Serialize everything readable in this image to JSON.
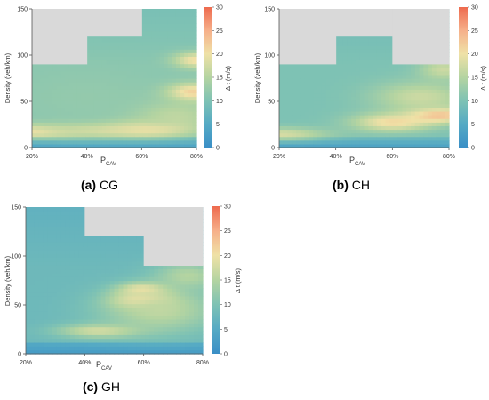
{
  "chart_data": [
    {
      "id": "CG",
      "type": "heatmap",
      "caption_letter": "(a)",
      "caption_text": "CG",
      "xlabel_main": "P",
      "xlabel_sub": "CAV",
      "ylabel": "Density (veh/km)",
      "colorbar_label": "Δ t (m/s)",
      "x_ticks": [
        "20%",
        "40%",
        "60%",
        "80%"
      ],
      "y_ticks": [
        "0",
        "50",
        "100",
        "150"
      ],
      "colorbar_ticks": [
        "0",
        "5",
        "10",
        "15",
        "20",
        "25",
        "30"
      ],
      "x_range": [
        20,
        80
      ],
      "y_range": [
        0,
        150
      ],
      "z_range": [
        0,
        30
      ],
      "no_data_regions": [
        {
          "x": [
            20,
            40
          ],
          "y": [
            90,
            150
          ]
        },
        {
          "x": [
            40,
            60
          ],
          "y": [
            120,
            150
          ]
        }
      ],
      "field": [
        {
          "x": 20,
          "y": 18,
          "v": 22,
          "sx": 12,
          "sy": 5
        },
        {
          "x": 45,
          "y": 20,
          "v": 20,
          "sx": 18,
          "sy": 6
        },
        {
          "x": 62,
          "y": 22,
          "v": 24,
          "sx": 10,
          "sy": 6
        },
        {
          "x": 78,
          "y": 60,
          "v": 24,
          "sx": 7,
          "sy": 7
        },
        {
          "x": 80,
          "y": 95,
          "v": 21,
          "sx": 6,
          "sy": 6
        },
        {
          "x": 70,
          "y": 35,
          "v": 17,
          "sx": 12,
          "sy": 12
        },
        {
          "x": 40,
          "y": 55,
          "v": 12,
          "sx": 20,
          "sy": 25
        }
      ],
      "base": {
        "mid": 11,
        "low": 3,
        "low_edge": 8
      }
    },
    {
      "id": "CH",
      "type": "heatmap",
      "caption_letter": "(b)",
      "caption_text": "CH",
      "xlabel_main": "P",
      "xlabel_sub": "CAV",
      "ylabel": "Density (veh/km)",
      "colorbar_label": "Δ t (m/s)",
      "x_ticks": [
        "20%",
        "40%",
        "60%",
        "80%"
      ],
      "y_ticks": [
        "0",
        "50",
        "100",
        "150"
      ],
      "colorbar_ticks": [
        "0",
        "5",
        "10",
        "15",
        "20",
        "25",
        "30"
      ],
      "x_range": [
        20,
        80
      ],
      "y_range": [
        0,
        150
      ],
      "z_range": [
        0,
        30
      ],
      "no_data_regions": [
        {
          "x": [
            20,
            40
          ],
          "y": [
            90,
            150
          ]
        },
        {
          "x": [
            40,
            60
          ],
          "y": [
            120,
            150
          ]
        },
        {
          "x": [
            60,
            80
          ],
          "y": [
            90,
            150
          ]
        }
      ],
      "field": [
        {
          "x": 20,
          "y": 15,
          "v": 18,
          "sx": 12,
          "sy": 5
        },
        {
          "x": 60,
          "y": 28,
          "v": 21,
          "sx": 10,
          "sy": 7
        },
        {
          "x": 76,
          "y": 36,
          "v": 25,
          "sx": 8,
          "sy": 6
        },
        {
          "x": 70,
          "y": 55,
          "v": 17,
          "sx": 12,
          "sy": 12
        },
        {
          "x": 78,
          "y": 85,
          "v": 17,
          "sx": 6,
          "sy": 8
        }
      ],
      "base": {
        "mid": 10,
        "low": 3,
        "low_edge": 8
      }
    },
    {
      "id": "GH",
      "type": "heatmap",
      "caption_letter": "(c)",
      "caption_text": "GH",
      "xlabel_main": "P",
      "xlabel_sub": "CAV",
      "ylabel": "Density (veh/km)",
      "colorbar_label": "Δ t (m/s)",
      "x_ticks": [
        "20%",
        "40%",
        "60%",
        "80%"
      ],
      "y_ticks": [
        "0",
        "50",
        "100",
        "150"
      ],
      "colorbar_ticks": [
        "0",
        "5",
        "10",
        "15",
        "20",
        "25",
        "30"
      ],
      "x_range": [
        20,
        80
      ],
      "y_range": [
        0,
        150
      ],
      "z_range": [
        0,
        30
      ],
      "no_data_regions": [
        {
          "x": [
            40,
            60
          ],
          "y": [
            120,
            150
          ]
        },
        {
          "x": [
            60,
            80
          ],
          "y": [
            90,
            150
          ]
        }
      ],
      "field": [
        {
          "x": 60,
          "y": 55,
          "v": 26,
          "sx": 7,
          "sy": 6
        },
        {
          "x": 60,
          "y": 66,
          "v": 22,
          "sx": 6,
          "sy": 5
        },
        {
          "x": 45,
          "y": 24,
          "v": 18,
          "sx": 10,
          "sy": 5
        },
        {
          "x": 65,
          "y": 45,
          "v": 16,
          "sx": 14,
          "sy": 16
        },
        {
          "x": 75,
          "y": 80,
          "v": 15,
          "sx": 8,
          "sy": 10
        }
      ],
      "base": {
        "mid": 8,
        "low": 2,
        "low_edge": 5
      }
    }
  ],
  "colors": {
    "colormap": [
      "#3a8fc6",
      "#55aac4",
      "#7ec2b4",
      "#b4d4a1",
      "#efe1a6",
      "#f6b08a",
      "#ee6a4e"
    ],
    "no_data": "#d9d9d9",
    "axis": "#555555"
  }
}
